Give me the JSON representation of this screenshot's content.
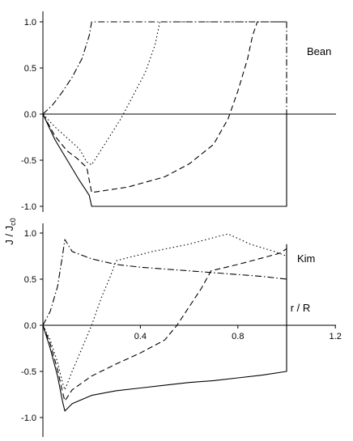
{
  "chart_data": {
    "type": "line",
    "ylabel": "J / J",
    "ylabel_subscript": "c0",
    "xlabel": "r / R",
    "panels": [
      {
        "label": "Bean",
        "ylim": [
          -1.1,
          1.1
        ],
        "xlim": [
          0,
          1.2
        ],
        "yticks": [
          1.0,
          0.5,
          0.0,
          -0.5,
          -1.0
        ],
        "ytick_labels": [
          "1.0",
          "0.5",
          "0.0",
          "-0.5",
          "-1.0"
        ],
        "series": [
          {
            "style": "solid",
            "points": [
              [
                0,
                0
              ],
              [
                0.05,
                -0.28
              ],
              [
                0.1,
                -0.5
              ],
              [
                0.15,
                -0.72
              ],
              [
                0.19,
                -0.88
              ],
              [
                0.2,
                -1.0
              ],
              [
                1.0,
                -1.0
              ],
              [
                1.0,
                0.0
              ]
            ]
          },
          {
            "style": "dashed",
            "points": [
              [
                0,
                0
              ],
              [
                0.05,
                -0.24
              ],
              [
                0.1,
                -0.4
              ],
              [
                0.14,
                -0.48
              ],
              [
                0.18,
                -0.58
              ],
              [
                0.2,
                -0.85
              ],
              [
                0.35,
                -0.79
              ],
              [
                0.5,
                -0.68
              ],
              [
                0.6,
                -0.54
              ],
              [
                0.7,
                -0.33
              ],
              [
                0.76,
                -0.05
              ],
              [
                0.8,
                0.25
              ],
              [
                0.84,
                0.6
              ],
              [
                0.86,
                0.85
              ],
              [
                0.88,
                1.0
              ],
              [
                1.0,
                1.0
              ]
            ]
          },
          {
            "style": "dotted",
            "points": [
              [
                0,
                0
              ],
              [
                0.05,
                -0.14
              ],
              [
                0.1,
                -0.26
              ],
              [
                0.15,
                -0.38
              ],
              [
                0.18,
                -0.52
              ],
              [
                0.2,
                -0.55
              ],
              [
                0.26,
                -0.3
              ],
              [
                0.32,
                -0.05
              ],
              [
                0.37,
                0.2
              ],
              [
                0.42,
                0.45
              ],
              [
                0.46,
                0.75
              ],
              [
                0.48,
                1.0
              ],
              [
                1.0,
                1.0
              ]
            ]
          },
          {
            "style": "dashdot",
            "points": [
              [
                0,
                0
              ],
              [
                0.04,
                0.1
              ],
              [
                0.08,
                0.24
              ],
              [
                0.12,
                0.4
              ],
              [
                0.16,
                0.6
              ],
              [
                0.19,
                0.85
              ],
              [
                0.2,
                1.0
              ],
              [
                1.0,
                1.0
              ],
              [
                1.0,
                0.0
              ]
            ]
          }
        ]
      },
      {
        "label": "Kim",
        "ylim": [
          -1.1,
          1.1
        ],
        "xlim": [
          0,
          1.2
        ],
        "yticks": [
          1.0,
          0.5,
          0.0,
          -0.5,
          -1.0
        ],
        "ytick_labels": [
          "1.0",
          "0.5",
          "0.0",
          "-0.5",
          "-1.0"
        ],
        "xticks": [
          0.4,
          0.8,
          1.2
        ],
        "xtick_labels": [
          "0.4",
          "0.8",
          "1.2"
        ],
        "series": [
          {
            "style": "solid",
            "points": [
              [
                0,
                0
              ],
              [
                0.03,
                -0.25
              ],
              [
                0.06,
                -0.55
              ],
              [
                0.08,
                -0.82
              ],
              [
                0.09,
                -0.93
              ],
              [
                0.12,
                -0.85
              ],
              [
                0.2,
                -0.76
              ],
              [
                0.3,
                -0.71
              ],
              [
                0.4,
                -0.68
              ],
              [
                0.5,
                -0.65
              ],
              [
                0.6,
                -0.62
              ],
              [
                0.7,
                -0.6
              ],
              [
                0.8,
                -0.57
              ],
              [
                0.9,
                -0.54
              ],
              [
                1.0,
                -0.5
              ],
              [
                1.0,
                0.88
              ]
            ]
          },
          {
            "style": "dashed",
            "points": [
              [
                0,
                0
              ],
              [
                0.03,
                -0.2
              ],
              [
                0.06,
                -0.48
              ],
              [
                0.08,
                -0.72
              ],
              [
                0.09,
                -0.82
              ],
              [
                0.12,
                -0.7
              ],
              [
                0.2,
                -0.55
              ],
              [
                0.3,
                -0.42
              ],
              [
                0.4,
                -0.3
              ],
              [
                0.5,
                -0.16
              ],
              [
                0.55,
                0.0
              ],
              [
                0.6,
                0.2
              ],
              [
                0.65,
                0.4
              ],
              [
                0.69,
                0.59
              ],
              [
                0.8,
                0.66
              ],
              [
                0.9,
                0.73
              ],
              [
                0.97,
                0.78
              ],
              [
                1.0,
                0.83
              ]
            ]
          },
          {
            "style": "dotted",
            "points": [
              [
                0,
                0
              ],
              [
                0.03,
                -0.16
              ],
              [
                0.06,
                -0.4
              ],
              [
                0.08,
                -0.62
              ],
              [
                0.09,
                -0.7
              ],
              [
                0.12,
                -0.5
              ],
              [
                0.16,
                -0.25
              ],
              [
                0.2,
                0.0
              ],
              [
                0.24,
                0.3
              ],
              [
                0.28,
                0.55
              ],
              [
                0.3,
                0.7
              ],
              [
                0.45,
                0.8
              ],
              [
                0.6,
                0.88
              ],
              [
                0.7,
                0.95
              ],
              [
                0.76,
                0.99
              ],
              [
                0.85,
                0.88
              ],
              [
                0.95,
                0.8
              ],
              [
                1.0,
                0.75
              ]
            ]
          },
          {
            "style": "dashdot",
            "points": [
              [
                0,
                0
              ],
              [
                0.03,
                0.15
              ],
              [
                0.06,
                0.42
              ],
              [
                0.08,
                0.75
              ],
              [
                0.09,
                0.93
              ],
              [
                0.12,
                0.8
              ],
              [
                0.2,
                0.72
              ],
              [
                0.3,
                0.66
              ],
              [
                0.4,
                0.63
              ],
              [
                0.5,
                0.61
              ],
              [
                0.6,
                0.59
              ],
              [
                0.7,
                0.57
              ],
              [
                0.8,
                0.55
              ],
              [
                0.9,
                0.53
              ],
              [
                1.0,
                0.5
              ]
            ]
          }
        ]
      }
    ]
  }
}
